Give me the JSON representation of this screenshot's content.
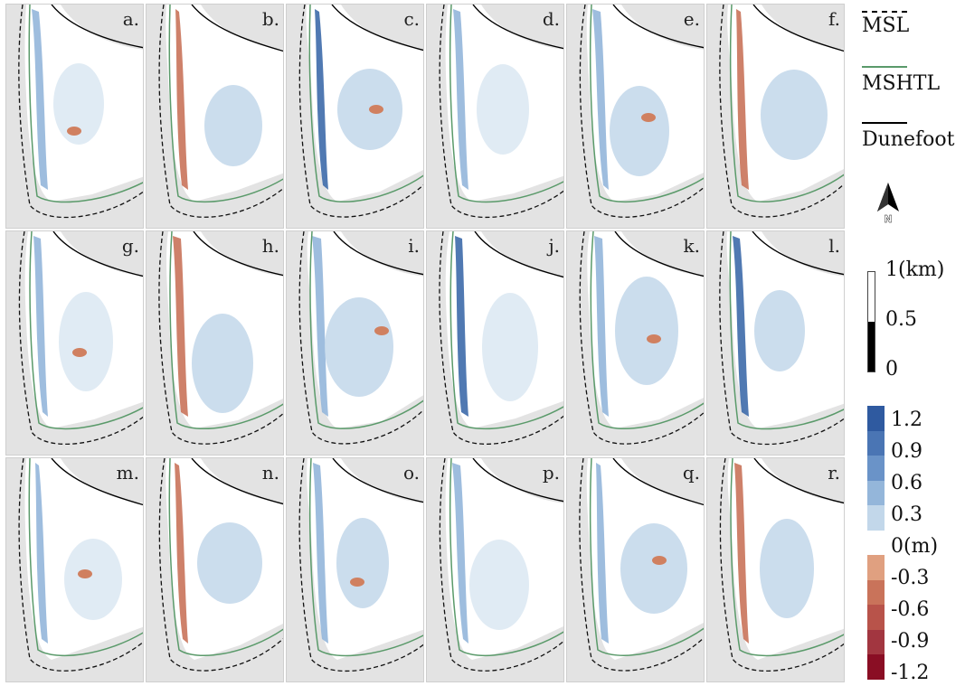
{
  "panels": [
    {
      "label": "a."
    },
    {
      "label": "b."
    },
    {
      "label": "c."
    },
    {
      "label": "d."
    },
    {
      "label": "e."
    },
    {
      "label": "f."
    },
    {
      "label": "g."
    },
    {
      "label": "h."
    },
    {
      "label": "i."
    },
    {
      "label": "j."
    },
    {
      "label": "k."
    },
    {
      "label": "l."
    },
    {
      "label": "m."
    },
    {
      "label": "n."
    },
    {
      "label": "o."
    },
    {
      "label": "p."
    },
    {
      "label": "q."
    },
    {
      "label": "r."
    }
  ],
  "legend": {
    "msl": "MSL",
    "mshtl": "MSHTL",
    "dunefoot": "Dunefoot",
    "msl_color": "#000000",
    "mshtl_color": "#5a9a6a",
    "dunefoot_color": "#000000"
  },
  "north_arrow": {
    "label": "N",
    "icon": "north-arrow-icon"
  },
  "scale": {
    "top": "1(km)",
    "mid": "0.5",
    "bottom": "0"
  },
  "colorbar": {
    "ticks": [
      "1.2",
      "0.9",
      "0.6",
      "0.3",
      "0(m)",
      "-0.3",
      "-0.6",
      "-0.9",
      "-1.2"
    ],
    "colors": [
      "#2f5aa0",
      "#4a75b4",
      "#6a93c8",
      "#94b6da",
      "#c2d7ea",
      "#ffffff",
      "#e0a080",
      "#c9735a",
      "#b8534a",
      "#a23640",
      "#8a0e24"
    ],
    "positive_color": "#6a93c8",
    "negative_color": "#c9735a"
  },
  "colors": {
    "panel_background": "#e3e3e3",
    "land": "#ffffff",
    "mshtl": "#5a9a6a",
    "accretion": "#6f97c9",
    "erosion": "#d08060"
  }
}
